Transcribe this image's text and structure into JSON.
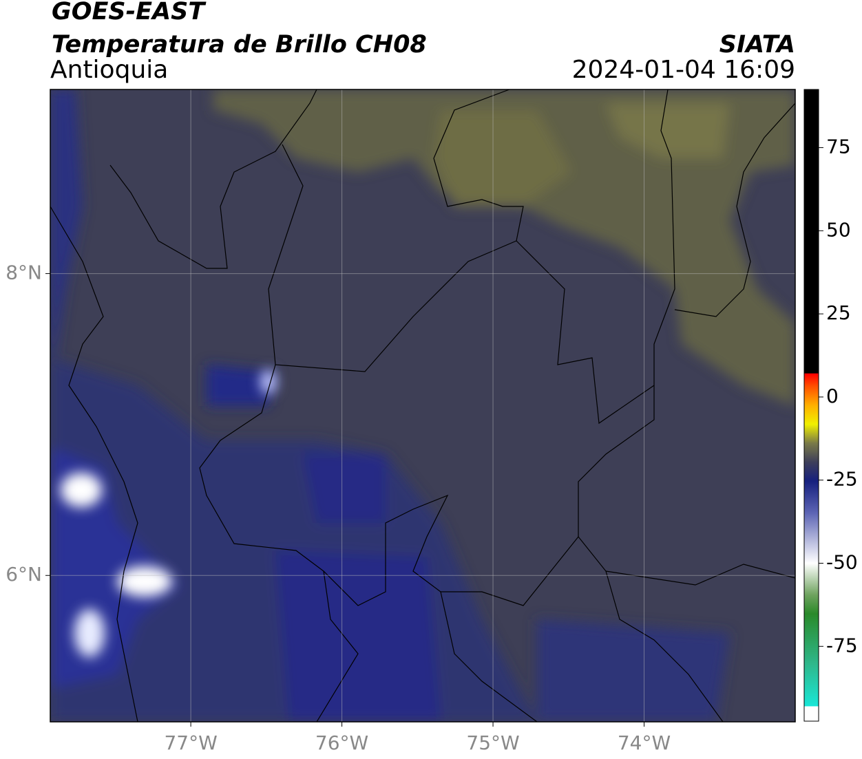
{
  "header": {
    "title": "GOES-EAST",
    "subtitle": "Temperatura de Brillo CH08",
    "region": "Antioquia",
    "source": "SIATA",
    "timestamp": "2024-01-04 16:09"
  },
  "map": {
    "xlim": [
      -77.93,
      -73.0
    ],
    "ylim": [
      5.03,
      9.22
    ],
    "xticks": [
      {
        "value": -77,
        "label": "77°W"
      },
      {
        "value": -76,
        "label": "76°W"
      },
      {
        "value": -75,
        "label": "75°W"
      },
      {
        "value": -74,
        "label": "74°W"
      }
    ],
    "yticks": [
      {
        "value": 8,
        "label": "8°N"
      },
      {
        "value": 6,
        "label": "6°N"
      }
    ],
    "grid": true
  },
  "colorbar": {
    "lim": [
      -97.5,
      92.5
    ],
    "ticks": [
      -75,
      -50,
      -25,
      0,
      25,
      50,
      75
    ]
  }
}
